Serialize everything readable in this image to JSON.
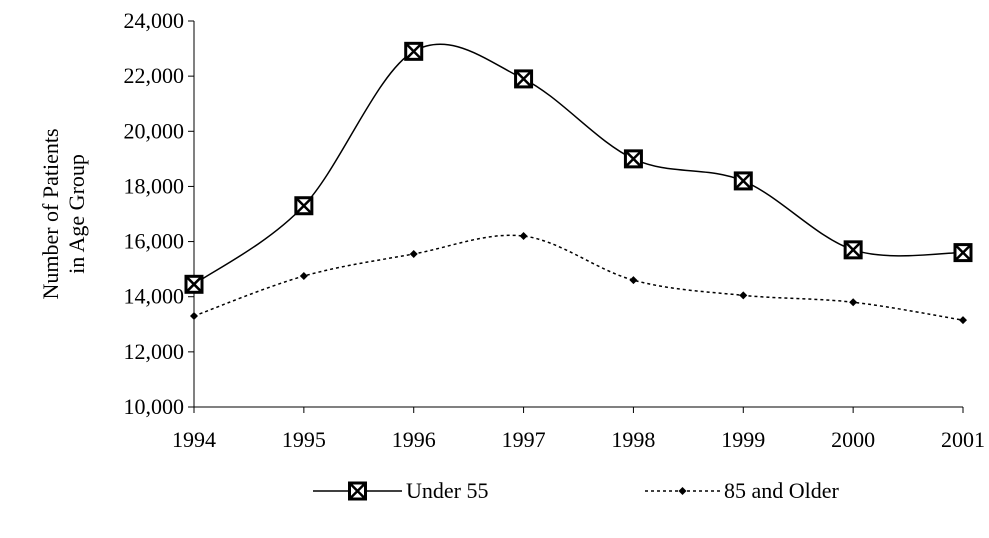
{
  "chart_data": {
    "type": "line",
    "ylabel": [
      "Number of Patients",
      "in Age Group"
    ],
    "x": [
      1994,
      1995,
      1996,
      1997,
      1998,
      1999,
      2000,
      2001
    ],
    "xlim": [
      1994,
      2001
    ],
    "xticks": [
      1994,
      1995,
      1996,
      1997,
      1998,
      1999,
      2000,
      2001
    ],
    "ylim": [
      10000,
      24000
    ],
    "yticks": [
      {
        "value": 10000,
        "label": "10,000"
      },
      {
        "value": 12000,
        "label": "12,000"
      },
      {
        "value": 14000,
        "label": "14,000"
      },
      {
        "value": 16000,
        "label": "16,000"
      },
      {
        "value": 18000,
        "label": "18,000"
      },
      {
        "value": 20000,
        "label": "20,000"
      },
      {
        "value": 22000,
        "label": "22,000"
      },
      {
        "value": 24000,
        "label": "24,000"
      }
    ],
    "series": [
      {
        "name": "Under 55",
        "color": "#000000",
        "marker": "square-x",
        "dash": "solid",
        "values": [
          14450,
          17300,
          22900,
          21900,
          19000,
          18200,
          15700,
          15600
        ]
      },
      {
        "name": "85 and Older",
        "color": "#000000",
        "marker": "diamond",
        "dash": "dotted",
        "values": [
          13300,
          14750,
          15550,
          16200,
          14600,
          14050,
          13800,
          13150
        ]
      }
    ]
  }
}
